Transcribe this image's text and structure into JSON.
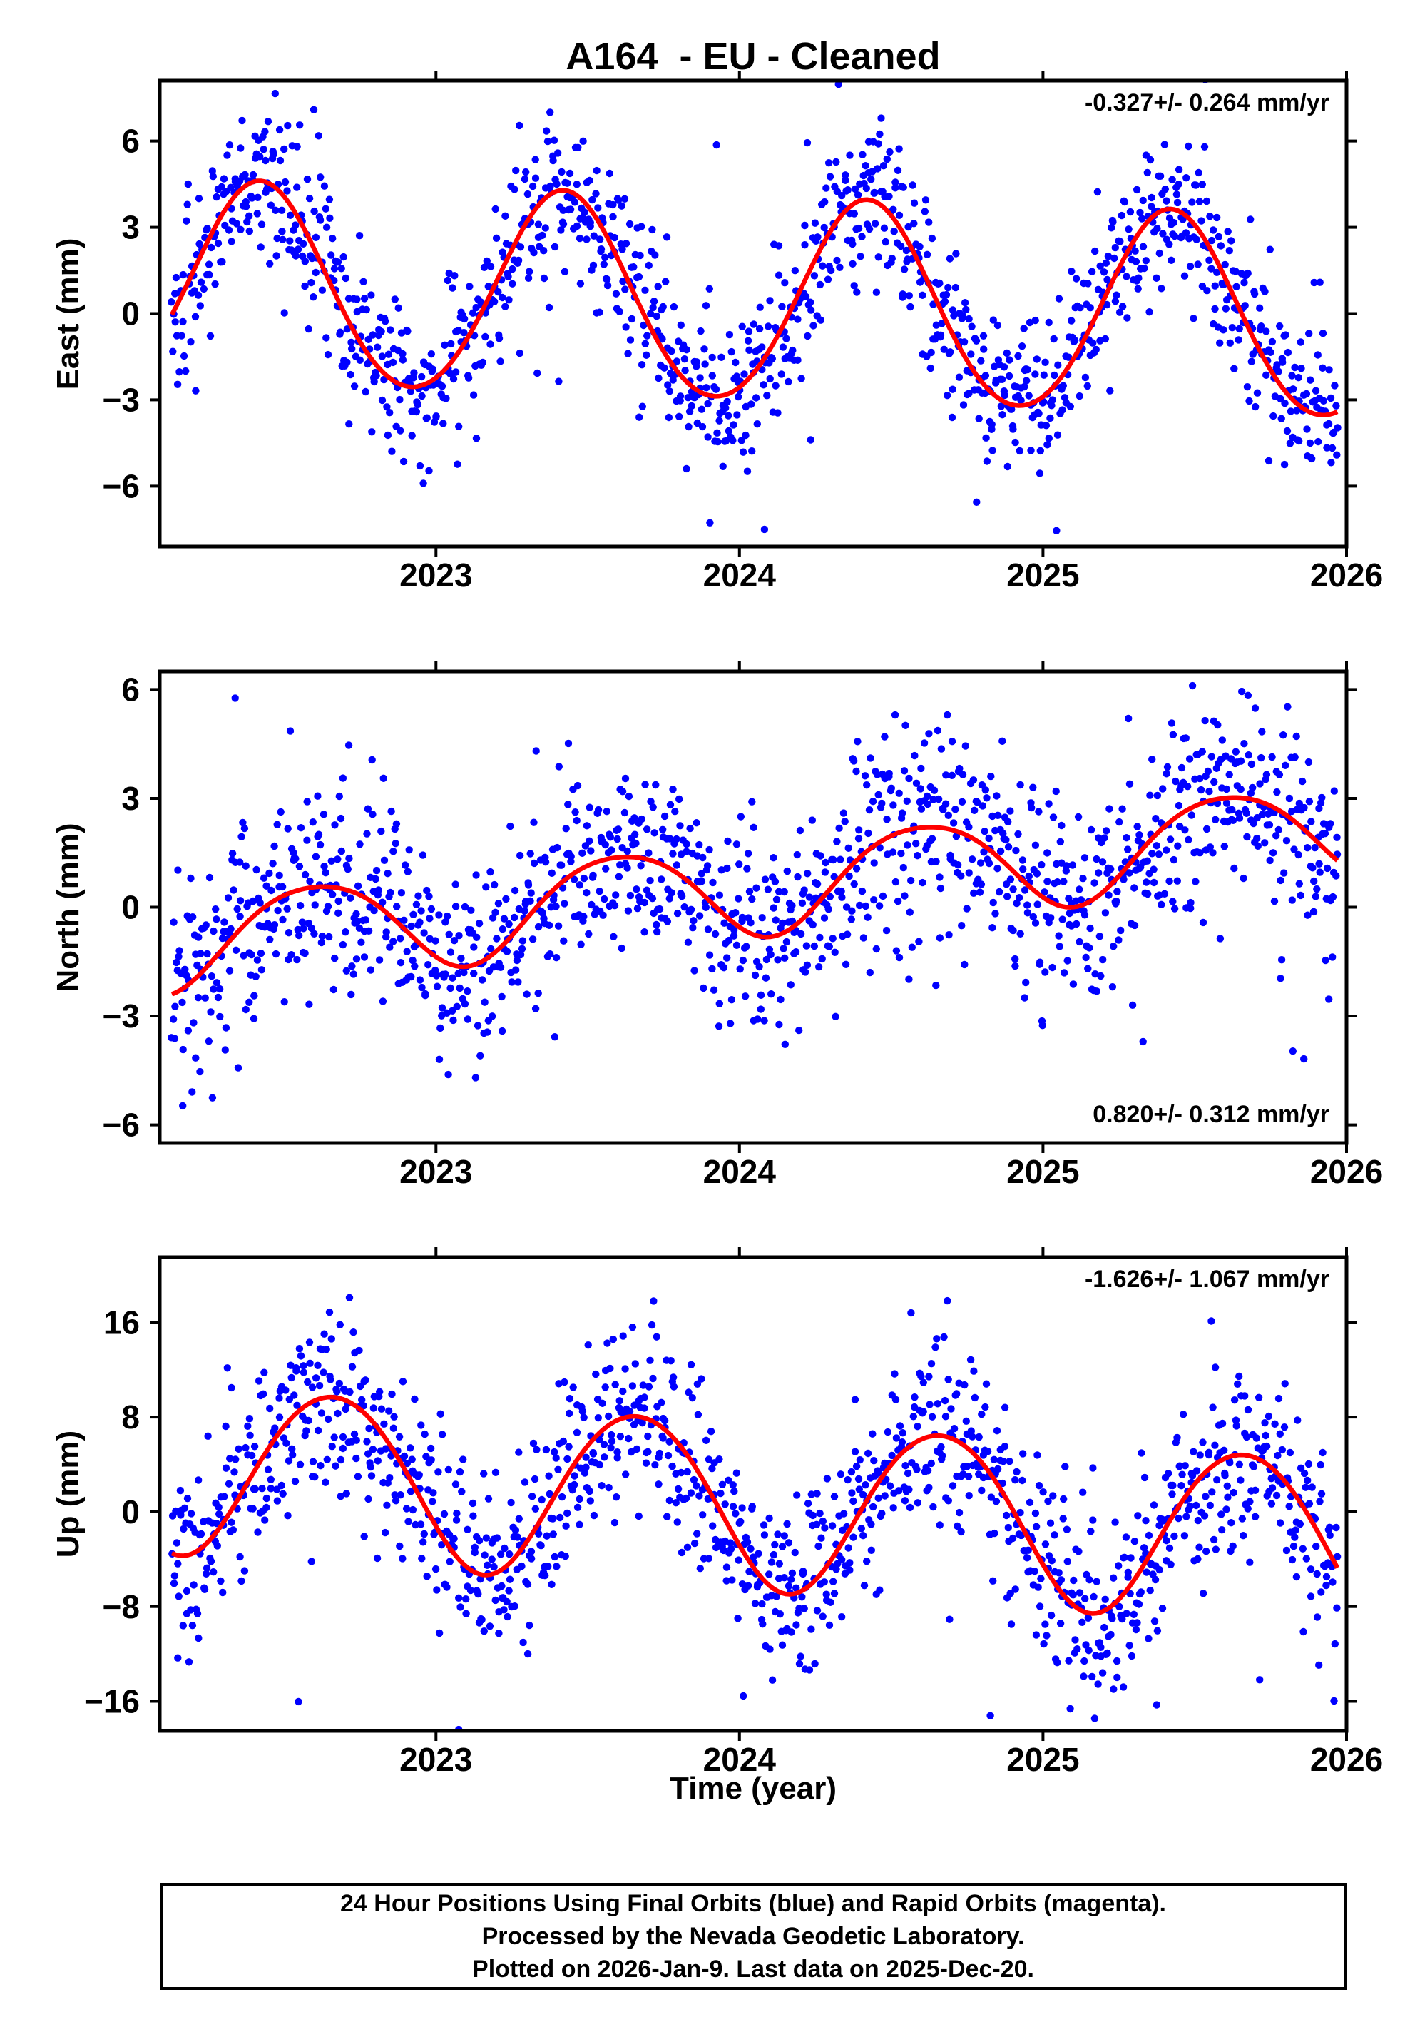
{
  "title": "A164  - EU - Cleaned",
  "xlabel": "Time (year)",
  "footer": {
    "line1": "24 Hour Positions Using Final Orbits (blue) and Rapid Orbits (magenta).",
    "line2": "Processed by the Nevada Geodetic Laboratory.",
    "line3": "Plotted on 2026-Jan-9. Last data on 2025-Dec-20."
  },
  "colors": {
    "final_orbits_points": "#0000ff",
    "rapid_orbits_points": "#ff00ff",
    "model_curve": "#ff0000",
    "frame": "#000000"
  },
  "chart_data": [
    {
      "type": "scatter",
      "panel": "east",
      "ylabel": "East (mm)",
      "annotation": "-0.327+/- 0.264 mm/yr",
      "annotation_corner": "top-right",
      "trend_mm_per_yr": -0.327,
      "trend_uncertainty_mm_per_yr": 0.264,
      "xlim": [
        2022.09,
        2026.0
      ],
      "ylim": [
        -8.1,
        8.1
      ],
      "xticks": [
        2023,
        2024,
        2025,
        2026
      ],
      "yticks": [
        -6,
        -3,
        0,
        3,
        6
      ],
      "point_color": "#0000ff",
      "curve_color": "#ff0000",
      "model_curve": {
        "mean_at_2024": 0.4,
        "trend": -0.327,
        "annual_amplitude": 3.5,
        "annual_peak_fraction": 0.42,
        "semiannual_amplitude": 0.2,
        "semiannual_peak_fraction": 0.42
      },
      "model_curve_keypoints": [
        [
          2022.13,
          1.0
        ],
        [
          2022.45,
          4.4
        ],
        [
          2022.9,
          -2.8
        ],
        [
          2023.42,
          4.1
        ],
        [
          2023.87,
          -3.0
        ],
        [
          2024.42,
          3.7
        ],
        [
          2024.9,
          -3.3
        ],
        [
          2025.42,
          3.3
        ],
        [
          2025.97,
          -2.7
        ]
      ],
      "scatter_points": {
        "count": 1300,
        "t_start": 2022.13,
        "t_end": 2025.97,
        "sigma_mm": 1.35,
        "outlier_fraction": 0.07,
        "outlier_scale": 2.3,
        "seed": 7
      }
    },
    {
      "type": "scatter",
      "panel": "north",
      "ylabel": "North (mm)",
      "annotation": "0.820+/- 0.312 mm/yr",
      "annotation_corner": "bottom-right",
      "trend_mm_per_yr": 0.82,
      "trend_uncertainty_mm_per_yr": 0.312,
      "xlim": [
        2022.09,
        2026.0
      ],
      "ylim": [
        -6.5,
        6.5
      ],
      "xticks": [
        2023,
        2024,
        2025,
        2026
      ],
      "yticks": [
        -6,
        -3,
        0,
        3,
        6
      ],
      "point_color": "#0000ff",
      "curve_color": "#ff0000",
      "model_curve": {
        "mean_at_2024": 0.55,
        "trend": 0.82,
        "annual_amplitude": 1.3,
        "annual_peak_fraction": 0.6,
        "semiannual_amplitude": 0.15,
        "semiannual_peak_fraction": 0.35
      },
      "model_curve_keypoints": [
        [
          2022.13,
          -2.0
        ],
        [
          2022.6,
          0.4
        ],
        [
          2022.95,
          -1.6
        ],
        [
          2023.6,
          1.2
        ],
        [
          2024.05,
          -0.7
        ],
        [
          2024.6,
          2.1
        ],
        [
          2025.0,
          -0.5
        ],
        [
          2025.6,
          2.9
        ],
        [
          2025.97,
          0.6
        ]
      ],
      "scatter_points": {
        "count": 1300,
        "t_start": 2022.13,
        "t_end": 2025.97,
        "sigma_mm": 1.4,
        "outlier_fraction": 0.07,
        "outlier_scale": 2.3,
        "seed": 19
      }
    },
    {
      "type": "scatter",
      "panel": "up",
      "ylabel": "Up (mm)",
      "annotation": "-1.626+/- 1.067 mm/yr",
      "annotation_corner": "top-right",
      "trend_mm_per_yr": -1.626,
      "trend_uncertainty_mm_per_yr": 1.067,
      "xlim": [
        2022.09,
        2026.0
      ],
      "ylim": [
        -18.5,
        21.5
      ],
      "xticks": [
        2023,
        2024,
        2025,
        2026
      ],
      "yticks": [
        -16,
        -8,
        0,
        8,
        16
      ],
      "point_color": "#0000ff",
      "curve_color": "#ff0000",
      "model_curve": {
        "mean_at_2024": 0.8,
        "trend": -1.626,
        "annual_amplitude": 7.1,
        "annual_peak_fraction": 0.66,
        "semiannual_amplitude": 0.4,
        "semiannual_peak_fraction": 0.41
      },
      "model_curve_keypoints": [
        [
          2022.13,
          -3.0
        ],
        [
          2022.7,
          10.0
        ],
        [
          2023.15,
          -4.5
        ],
        [
          2023.65,
          8.5
        ],
        [
          2024.15,
          -5.5
        ],
        [
          2024.65,
          7.0
        ],
        [
          2025.2,
          -8.3
        ],
        [
          2025.65,
          5.5
        ],
        [
          2025.97,
          -6.5
        ]
      ],
      "scatter_points": {
        "count": 1300,
        "t_start": 2022.13,
        "t_end": 2025.97,
        "sigma_mm": 3.9,
        "outlier_fraction": 0.07,
        "outlier_scale": 2.3,
        "seed": 31
      }
    }
  ]
}
